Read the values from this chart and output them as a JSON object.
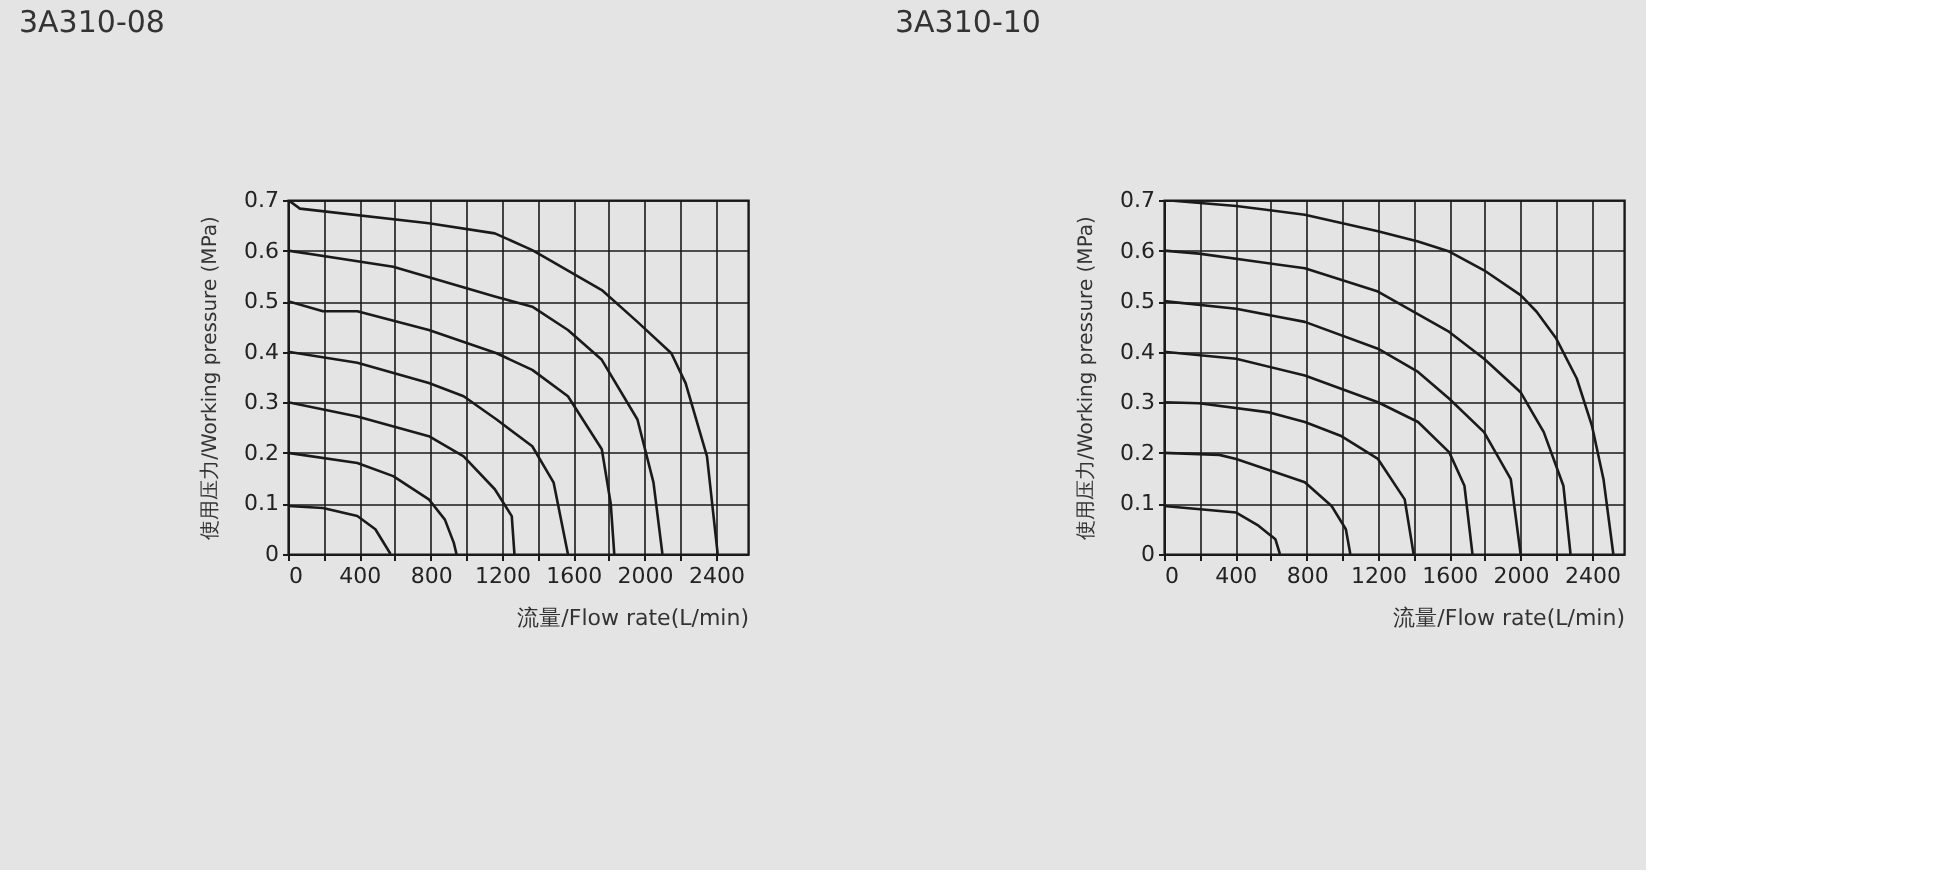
{
  "chart_data": [
    {
      "type": "line",
      "title": "3A310-08",
      "xlabel": "流量/Flow rate(L/min)",
      "ylabel": "使用压力/Working pressure (MPa)",
      "xlim": [
        0,
        2580
      ],
      "ylim": [
        0,
        0.7
      ],
      "xticks": [
        0,
        {
          "value": 200,
          "label": null
        },
        400,
        {
          "value": 600,
          "label": null
        },
        800,
        {
          "value": 1000,
          "label": null
        },
        1200,
        {
          "value": 1400,
          "label": null
        },
        1600,
        {
          "value": 1800,
          "label": null
        },
        2000,
        {
          "value": 2200,
          "label": null
        },
        2400
      ],
      "yticks": [
        0,
        0.1,
        0.2,
        0.3,
        0.4,
        0.5,
        0.6,
        0.7
      ],
      "grid": true,
      "marker": "none",
      "line_style": "solid",
      "series": [
        {
          "color": "#1a1a1a",
          "x": [
            0,
            67,
            790,
            1160,
            1370,
            1760,
            1960,
            2150,
            2230,
            2350,
            2410
          ],
          "values": [
            0.7,
            0.683,
            0.654,
            0.634,
            0.601,
            0.522,
            0.459,
            0.397,
            0.338,
            0.193,
            0
          ]
        },
        {
          "color": "#1a1a1a",
          "x": [
            0,
            590,
            1160,
            1370,
            1570,
            1760,
            1960,
            2050,
            2100
          ],
          "values": [
            0.6,
            0.568,
            0.509,
            0.489,
            0.443,
            0.384,
            0.266,
            0.141,
            0
          ]
        },
        {
          "color": "#1a1a1a",
          "x": [
            0,
            196,
            389,
            790,
            1170,
            1370,
            1570,
            1760,
            1810,
            1830
          ],
          "values": [
            0.5,
            0.48,
            0.48,
            0.443,
            0.397,
            0.364,
            0.312,
            0.207,
            0.1,
            0
          ]
        },
        {
          "color": "#1a1a1a",
          "x": [
            0,
            389,
            790,
            985,
            1170,
            1370,
            1490,
            1570
          ],
          "values": [
            0.4,
            0.378,
            0.338,
            0.312,
            0.266,
            0.213,
            0.141,
            0
          ]
        },
        {
          "color": "#1a1a1a",
          "x": [
            0,
            389,
            790,
            985,
            1160,
            1255,
            1270
          ],
          "values": [
            0.3,
            0.272,
            0.233,
            0.193,
            0.128,
            0.075,
            0
          ]
        },
        {
          "color": "#1a1a1a",
          "x": [
            0,
            389,
            590,
            790,
            880,
            930,
            945
          ],
          "values": [
            0.2,
            0.18,
            0.154,
            0.108,
            0.068,
            0.022,
            0
          ]
        },
        {
          "color": "#1a1a1a",
          "x": [
            0,
            196,
            389,
            490,
            575
          ],
          "values": [
            0.095,
            0.091,
            0.075,
            0.049,
            0
          ]
        }
      ]
    },
    {
      "type": "line",
      "title": "3A310-10",
      "xlabel": "流量/Flow rate(L/min)",
      "ylabel": "使用压力/Working pressure (MPa)",
      "xlim": [
        0,
        2580
      ],
      "ylim": [
        0,
        0.7
      ],
      "xticks": [
        0,
        {
          "value": 200,
          "label": null
        },
        400,
        {
          "value": 600,
          "label": null
        },
        800,
        {
          "value": 1000,
          "label": null
        },
        1200,
        {
          "value": 1400,
          "label": null
        },
        1600,
        {
          "value": 1800,
          "label": null
        },
        2000,
        {
          "value": 2200,
          "label": null
        },
        2400
      ],
      "yticks": [
        0,
        0.1,
        0.2,
        0.3,
        0.4,
        0.5,
        0.6,
        0.7
      ],
      "grid": true,
      "marker": "none",
      "line_style": "solid",
      "series": [
        {
          "color": "#1a1a1a",
          "x": [
            0,
            405,
            790,
            1200,
            1425,
            1600,
            1795,
            2000,
            2090,
            2200,
            2315,
            2400,
            2465,
            2520
          ],
          "values": [
            0.7,
            0.688,
            0.671,
            0.638,
            0.618,
            0.598,
            0.561,
            0.512,
            0.479,
            0.426,
            0.347,
            0.254,
            0.148,
            0
          ]
        },
        {
          "color": "#1a1a1a",
          "x": [
            0,
            197,
            790,
            1200,
            1600,
            1795,
            2000,
            2130,
            2240,
            2280
          ],
          "values": [
            0.6,
            0.594,
            0.565,
            0.519,
            0.439,
            0.386,
            0.32,
            0.241,
            0.135,
            0
          ]
        },
        {
          "color": "#1a1a1a",
          "x": [
            0,
            405,
            790,
            1200,
            1425,
            1600,
            1795,
            1945,
            2000
          ],
          "values": [
            0.5,
            0.485,
            0.459,
            0.406,
            0.36,
            0.307,
            0.241,
            0.148,
            0
          ]
        },
        {
          "color": "#1a1a1a",
          "x": [
            0,
            405,
            790,
            1200,
            1425,
            1600,
            1685,
            1730
          ],
          "values": [
            0.4,
            0.386,
            0.353,
            0.3,
            0.261,
            0.201,
            0.135,
            0
          ]
        },
        {
          "color": "#1a1a1a",
          "x": [
            0,
            197,
            590,
            790,
            990,
            1200,
            1350,
            1400
          ],
          "values": [
            0.3,
            0.298,
            0.28,
            0.261,
            0.234,
            0.188,
            0.108,
            0
          ]
        },
        {
          "color": "#1a1a1a",
          "x": [
            0,
            310,
            405,
            790,
            940,
            1020,
            1045
          ],
          "values": [
            0.2,
            0.196,
            0.188,
            0.142,
            0.095,
            0.049,
            0
          ]
        },
        {
          "color": "#1a1a1a",
          "x": [
            0,
            405,
            530,
            625,
            650
          ],
          "values": [
            0.095,
            0.082,
            0.056,
            0.029,
            0
          ]
        }
      ]
    }
  ]
}
